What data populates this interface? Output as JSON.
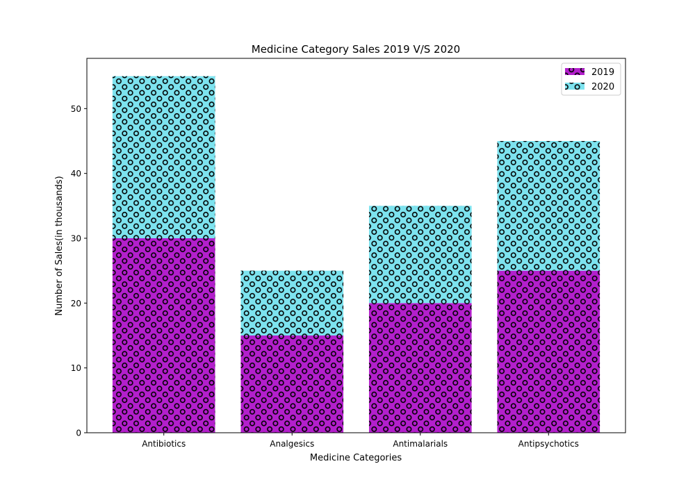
{
  "chart_data": {
    "type": "bar",
    "stacked": true,
    "title": "Medicine Category Sales 2019 V/S 2020",
    "xlabel": "Medicine Categories",
    "ylabel": "Number of Sales(in thousands)",
    "categories": [
      "Antibiotics",
      "Analgesics",
      "Antimalarials",
      "Antipsychotics"
    ],
    "series": [
      {
        "name": "2019",
        "values": [
          30,
          15,
          20,
          25
        ],
        "color": "#b31fcc",
        "hatch": "o"
      },
      {
        "name": "2020",
        "values": [
          25,
          10,
          15,
          20
        ],
        "color": "#7de3ef",
        "hatch": "o"
      }
    ],
    "ylim": [
      0,
      57.75
    ],
    "yticks": [
      0,
      10,
      20,
      30,
      40,
      50
    ],
    "grid": false,
    "legend_position": "top-right"
  }
}
